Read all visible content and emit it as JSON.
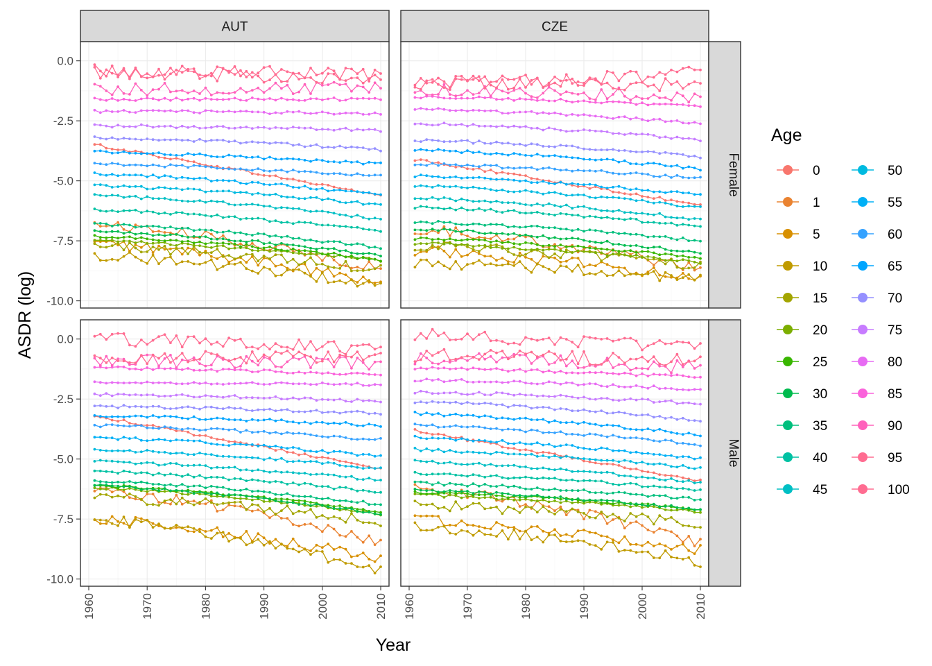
{
  "chart_data": {
    "type": "line",
    "xlabel": "Year",
    "ylabel": "ASDR (log)",
    "xlim": [
      1960,
      2010
    ],
    "ylim": [
      -10.3,
      0.8
    ],
    "x_ticks": [
      "1960",
      "1970",
      "1980",
      "1990",
      "2000",
      "2010"
    ],
    "y_ticks": [
      "0.0",
      "-2.5",
      "-5.0",
      "-7.5",
      "-10.0"
    ],
    "grid": true,
    "facet_cols": [
      "AUT",
      "CZE"
    ],
    "facet_rows": [
      "Female",
      "Male"
    ],
    "legend": {
      "title": "Age",
      "placement": "right",
      "ages": [
        "0",
        "1",
        "5",
        "10",
        "15",
        "20",
        "25",
        "30",
        "35",
        "40",
        "45",
        "50",
        "55",
        "60",
        "65",
        "70",
        "75",
        "80",
        "85",
        "90",
        "95",
        "100"
      ],
      "colors": [
        "#F8766D",
        "#EA8331",
        "#D89000",
        "#C09B00",
        "#A3A500",
        "#7CAE00",
        "#39B600",
        "#00BB4E",
        "#00BF7D",
        "#00C1A3",
        "#00BFC4",
        "#00BAE0",
        "#00B0F6",
        "#35A2FF",
        "#00A5FF",
        "#9590FF",
        "#C77CFF",
        "#E76BF3",
        "#FA62DB",
        "#FF62BC",
        "#FF6C91",
        "#FF6C91"
      ]
    },
    "year_start": 1961,
    "year_end": 2010,
    "series_endpoints": {
      "AUT_Female": {
        "start": [
          -3.5,
          -6.8,
          -7.6,
          -8.1,
          -7.7,
          -7.5,
          -7.3,
          -7.1,
          -6.8,
          -6.2,
          -5.6,
          -5.2,
          -4.7,
          -4.3,
          -3.8,
          -3.2,
          -2.7,
          -2.1,
          -1.6,
          -1.2,
          -0.5,
          -0.4
        ],
        "end": [
          -5.6,
          -8.7,
          -9.3,
          -9.4,
          -8.7,
          -8.3,
          -8.3,
          -8.1,
          -7.8,
          -7.1,
          -6.6,
          -6.0,
          -5.6,
          -4.8,
          -4.3,
          -3.7,
          -2.9,
          -2.2,
          -1.6,
          -1.1,
          -0.8,
          -0.6
        ]
      },
      "AUT_Male": {
        "start": [
          -3.2,
          -6.3,
          -7.5,
          -7.5,
          -6.6,
          -6.2,
          -6.1,
          -6.1,
          -5.9,
          -5.5,
          -5.1,
          -4.6,
          -4.1,
          -3.6,
          -3.2,
          -2.8,
          -2.3,
          -1.8,
          -1.2,
          -0.9,
          -0.8,
          0.0
        ],
        "end": [
          -5.4,
          -8.5,
          -9.2,
          -9.7,
          -7.6,
          -7.3,
          -7.2,
          -7.3,
          -6.9,
          -6.4,
          -5.9,
          -5.4,
          -4.9,
          -4.2,
          -3.6,
          -3.1,
          -2.6,
          -1.9,
          -1.5,
          -1.0,
          -0.7,
          -0.5
        ]
      },
      "CZE_Female": {
        "start": [
          -4.1,
          -7.0,
          -7.9,
          -8.4,
          -7.7,
          -7.6,
          -7.4,
          -7.0,
          -6.7,
          -6.1,
          -5.7,
          -5.2,
          -4.8,
          -4.3,
          -3.7,
          -3.3,
          -2.6,
          -2.0,
          -1.5,
          -1.2,
          -0.9,
          -1.0
        ],
        "end": [
          -6.0,
          -8.7,
          -9.1,
          -9.1,
          -8.6,
          -8.4,
          -8.2,
          -8.0,
          -7.5,
          -6.9,
          -6.6,
          -6.1,
          -5.6,
          -4.9,
          -4.5,
          -4.0,
          -3.3,
          -2.6,
          -1.9,
          -1.5,
          -1.0,
          -0.5
        ]
      },
      "CZE_Male": {
        "start": [
          -3.8,
          -6.2,
          -7.5,
          -7.8,
          -6.9,
          -6.5,
          -6.4,
          -6.3,
          -6.0,
          -5.6,
          -5.1,
          -4.6,
          -4.1,
          -3.6,
          -3.1,
          -2.6,
          -2.2,
          -1.7,
          -1.2,
          -0.8,
          -0.7,
          0.2
        ],
        "end": [
          -5.9,
          -8.5,
          -8.8,
          -9.3,
          -7.7,
          -7.2,
          -7.1,
          -7.1,
          -6.7,
          -6.3,
          -6.0,
          -5.4,
          -5.0,
          -4.4,
          -4.0,
          -3.4,
          -2.7,
          -2.1,
          -1.6,
          -1.2,
          -0.9,
          -0.4
        ]
      }
    }
  }
}
